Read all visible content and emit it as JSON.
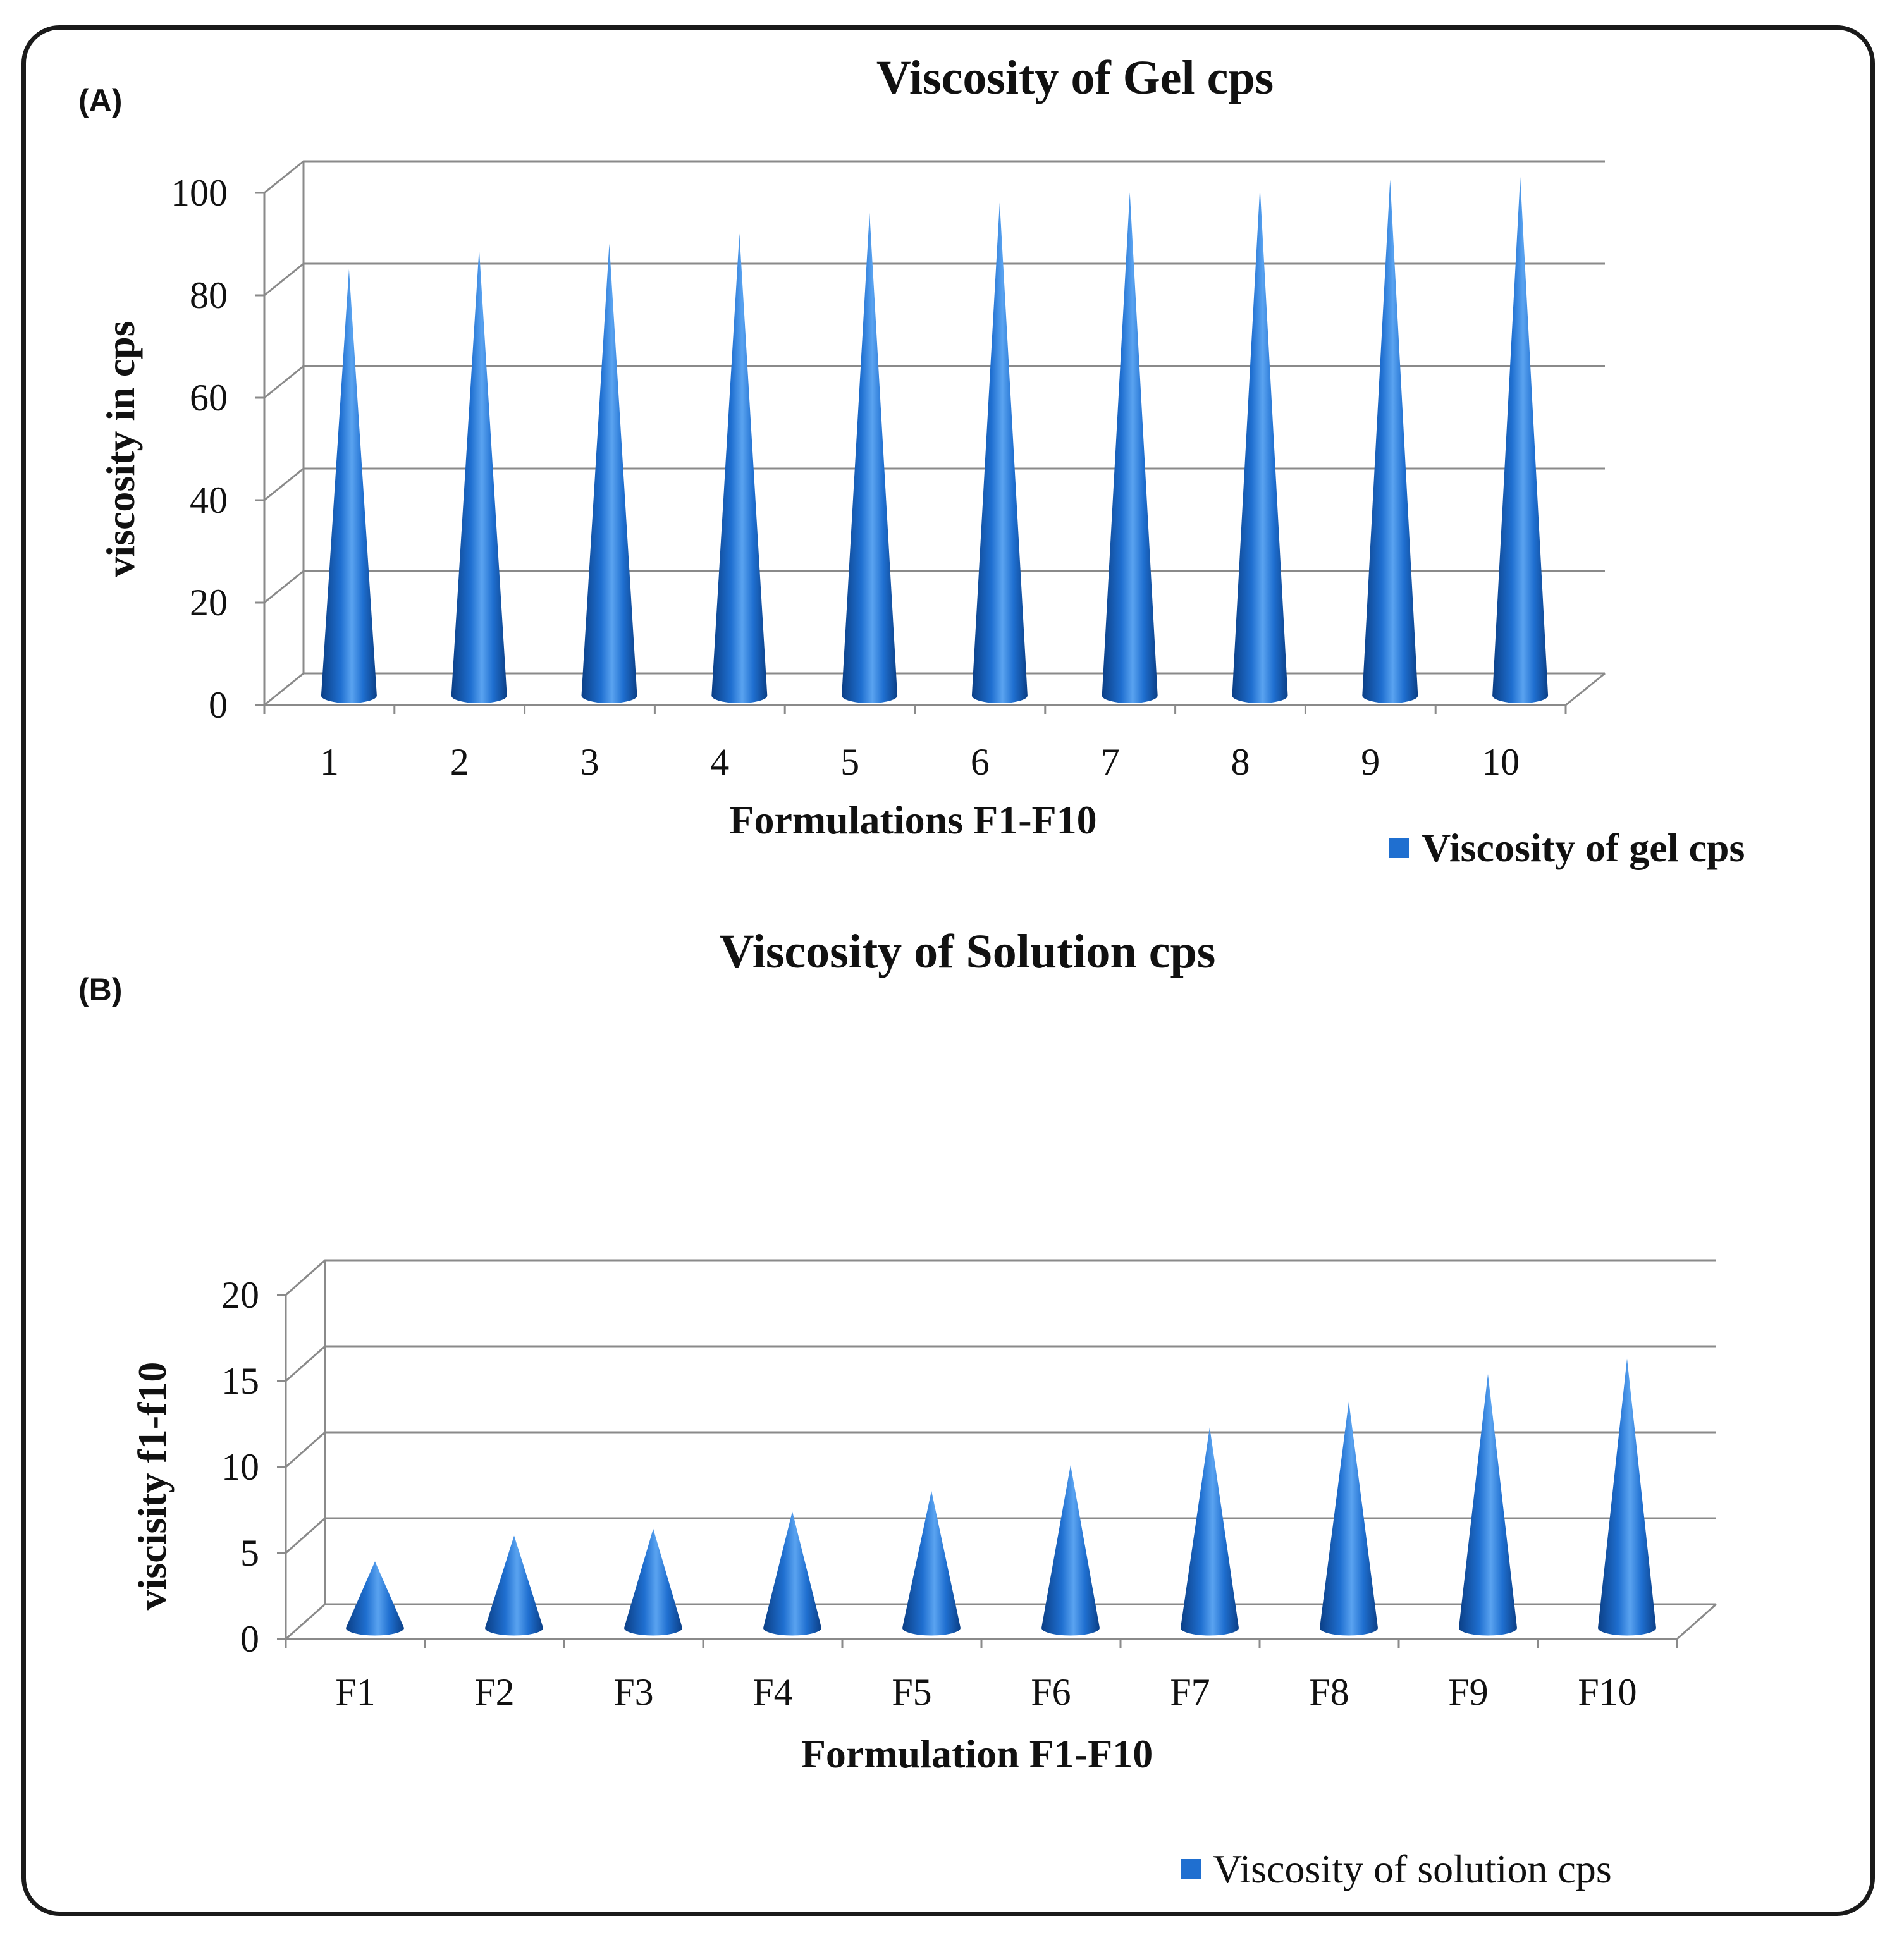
{
  "colors": {
    "cone_dark": "#0b3f86",
    "cone_mid": "#1f6fd0",
    "cone_light": "#5aa3f0",
    "grid": "#8a8a8a",
    "text": "#111111",
    "legend": "#1f6fd0"
  },
  "chart_data": [
    {
      "panel_label": "(A)",
      "type": "bar",
      "shape": "cone-3d",
      "title": "Viscosity of Gel cps",
      "xlabel": "Formulations F1-F10",
      "ylabel": "viscosity in cps",
      "ylim": [
        0,
        100
      ],
      "yticks": [
        "0",
        "20",
        "40",
        "60",
        "80",
        "100"
      ],
      "grid": true,
      "legend_position": "bottom-right",
      "categories": [
        "1",
        "2",
        "3",
        "4",
        "5",
        "6",
        "7",
        "8",
        "9",
        "10"
      ],
      "series": [
        {
          "name": "Viscosity of gel cps",
          "values": [
            82,
            86,
            87,
            89,
            93,
            95,
            97,
            98,
            99.5,
            100
          ]
        }
      ]
    },
    {
      "panel_label": "(B)",
      "type": "bar",
      "shape": "cone-3d",
      "title": "Viscosity of Solution cps",
      "xlabel": "Formulation F1-F10",
      "ylabel": "viscisity f1-f10",
      "ylim": [
        0,
        20
      ],
      "yticks": [
        "0",
        "5",
        "10",
        "15",
        "20"
      ],
      "grid": true,
      "legend_position": "bottom-right",
      "categories": [
        "F1",
        "F2",
        "F3",
        "F4",
        "F5",
        "F6",
        "F7",
        "F8",
        "F9",
        "F10"
      ],
      "series": [
        {
          "name": "Viscosity of solution cps",
          "values": [
            3.5,
            5,
            5.4,
            6.4,
            7.6,
            9.1,
            11.3,
            12.8,
            14.4,
            15.3
          ]
        }
      ]
    }
  ]
}
